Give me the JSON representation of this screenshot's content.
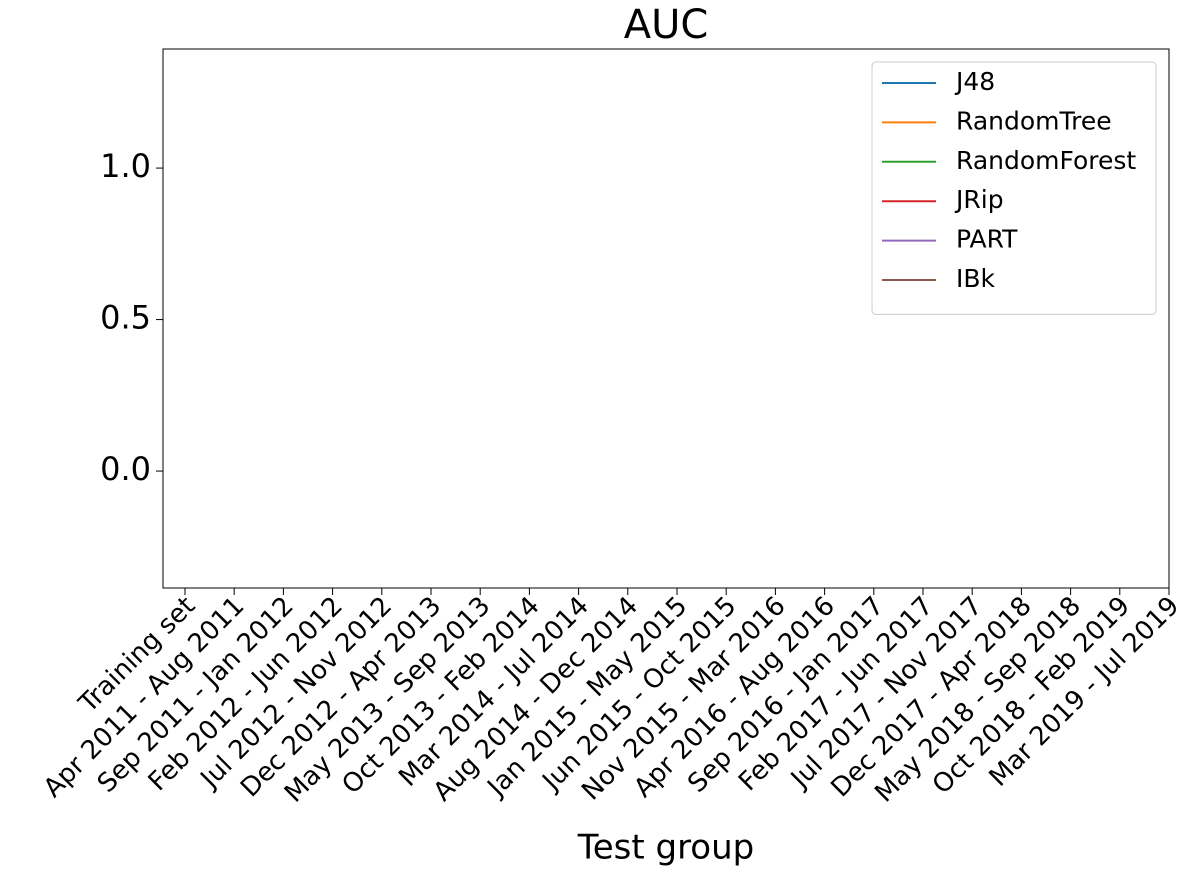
{
  "chart_data": {
    "type": "line",
    "title": "AUC",
    "x_label": "Test group",
    "categories": [
      "Training set",
      "Apr 2011 - Aug 2011",
      "Sep 2011 - Jan 2012",
      "Feb 2012 - Jun 2012",
      "Jul 2012 - Nov 2012",
      "Dec 2012 - Apr 2013",
      "May 2013 - Sep 2013",
      "Oct 2013 - Feb 2014",
      "Mar 2014 - Jul 2014",
      "Aug 2014 - Dec 2014",
      "Jan 2015 - May 2015",
      "Jun 2015 - Oct 2015",
      "Nov 2015 - Mar 2016",
      "Apr 2016 - Aug 2016",
      "Sep 2016 - Jan 2017",
      "Feb 2017 - Jun 2017",
      "Jul 2017 - Nov 2017",
      "Dec 2017 - Apr 2018",
      "May 2018 - Sep 2018",
      "Oct 2018 - Feb 2019",
      "Mar 2019 - Jul 2019"
    ],
    "series": [
      {
        "name": "J48",
        "color": "#1f77b4",
        "values": [
          null,
          null,
          null,
          null,
          null,
          null,
          null,
          null,
          null,
          null,
          null,
          null,
          null,
          null,
          null,
          null,
          null,
          null,
          null,
          null,
          null
        ]
      },
      {
        "name": "RandomTree",
        "color": "#ff7f0e",
        "values": [
          null,
          null,
          null,
          null,
          null,
          null,
          null,
          null,
          null,
          null,
          null,
          null,
          null,
          null,
          null,
          null,
          null,
          null,
          null,
          null,
          null
        ]
      },
      {
        "name": "RandomForest",
        "color": "#2ca02c",
        "values": [
          null,
          null,
          null,
          null,
          null,
          null,
          null,
          null,
          null,
          null,
          null,
          null,
          null,
          null,
          null,
          null,
          null,
          null,
          null,
          null,
          null
        ]
      },
      {
        "name": "JRip",
        "color": "#d62728",
        "values": [
          null,
          null,
          null,
          null,
          null,
          null,
          null,
          null,
          null,
          null,
          null,
          null,
          null,
          null,
          null,
          null,
          null,
          null,
          null,
          null,
          null
        ]
      },
      {
        "name": "PART",
        "color": "#9467bd",
        "values": [
          null,
          null,
          null,
          null,
          null,
          null,
          null,
          null,
          null,
          null,
          null,
          null,
          null,
          null,
          null,
          null,
          null,
          null,
          null,
          null,
          null
        ]
      },
      {
        "name": "IBk",
        "color": "#8c564b",
        "values": [
          null,
          null,
          null,
          null,
          null,
          null,
          null,
          null,
          null,
          null,
          null,
          null,
          null,
          null,
          null,
          null,
          null,
          null,
          null,
          null,
          null
        ]
      }
    ],
    "ylim": [
      -0.386,
      1.393
    ],
    "yticks": [
      {
        "value": 0,
        "label": "0.0"
      },
      {
        "value": 0.5,
        "label": "0.5"
      },
      {
        "value": 1,
        "label": "1.0"
      }
    ],
    "legend": "upper right"
  }
}
